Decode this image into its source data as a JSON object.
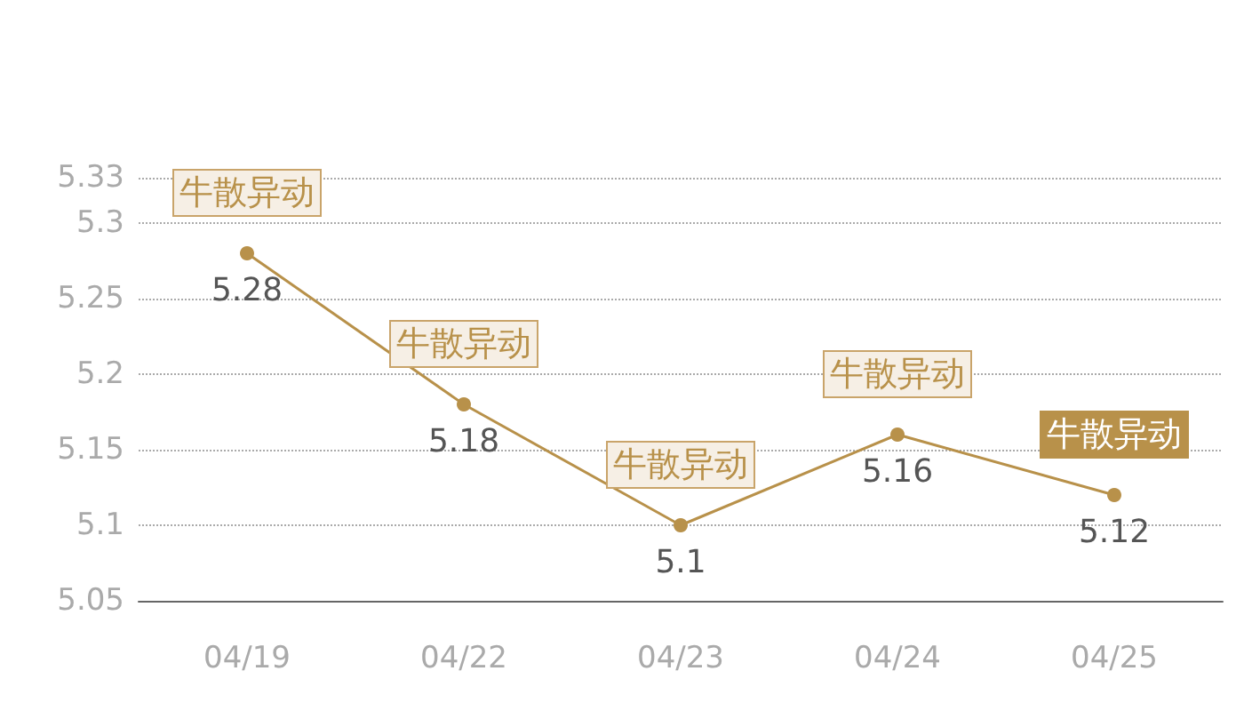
{
  "chart_data": {
    "type": "line",
    "categories": [
      "04/19",
      "04/22",
      "04/23",
      "04/24",
      "04/25"
    ],
    "series": [
      {
        "color": "#b8914a",
        "values": [
          5.28,
          5.18,
          5.1,
          5.16,
          5.12
        ]
      }
    ],
    "ylim": [
      5.05,
      5.33
    ],
    "yticks": [
      5.05,
      5.1,
      5.15,
      5.2,
      5.25,
      5.3,
      5.33
    ],
    "grid": "y",
    "marker": "circle",
    "line_style": "solid",
    "data_labels": true,
    "annotations": [
      {
        "text": "牛散异动",
        "x": "04/19",
        "y": 5.28
      },
      {
        "text": "牛散异动",
        "x": "04/22",
        "y": 5.18
      },
      {
        "text": "牛散异动",
        "x": "04/23",
        "y": 5.1
      },
      {
        "text": "牛散异动",
        "x": "04/24",
        "y": 5.16
      },
      {
        "text": "牛散异动",
        "x": "04/25",
        "y": 5.12
      }
    ]
  }
}
